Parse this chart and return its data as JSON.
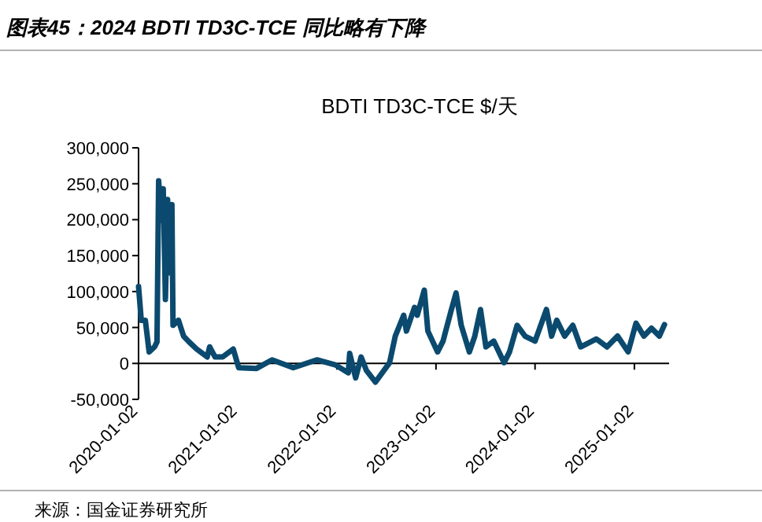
{
  "chart_data": {
    "type": "line",
    "title": "BDTI TD3C-TCE $/天",
    "annotations": [
      "图表45：2024 BDTI TD3C-TCE 同比略有下降",
      "来源：国金证券研究所"
    ],
    "series": [
      {
        "color": "#0b4a6e",
        "x": [
          "2020-01-02",
          "2020-01-12",
          "2020-01-27",
          "2020-02-10",
          "2020-03-01",
          "2020-03-10",
          "2020-03-16",
          "2020-03-26",
          "2020-04-02",
          "2020-04-10",
          "2020-04-18",
          "2020-04-28",
          "2020-05-04",
          "2020-05-08",
          "2020-05-28",
          "2020-06-16",
          "2020-07-06",
          "2020-08-03",
          "2020-09-11",
          "2020-09-20",
          "2020-10-10",
          "2020-11-07",
          "2020-12-16",
          "2021-01-05",
          "2021-03-12",
          "2021-05-08",
          "2021-07-25",
          "2021-10-20",
          "2021-12-27",
          "2022-02-13",
          "2022-02-18",
          "2022-03-12",
          "2022-04-01",
          "2022-04-21",
          "2022-05-24",
          "2022-07-15",
          "2022-08-05",
          "2022-09-05",
          "2022-09-15",
          "2022-10-15",
          "2022-10-25",
          "2022-11-20",
          "2022-12-03",
          "2023-01-08",
          "2023-01-28",
          "2023-02-25",
          "2023-03-17",
          "2023-04-05",
          "2023-05-05",
          "2023-05-25",
          "2023-06-15",
          "2023-07-05",
          "2023-08-03",
          "2023-09-10",
          "2023-09-30",
          "2023-10-28",
          "2023-11-26",
          "2024-01-02",
          "2024-02-13",
          "2024-03-03",
          "2024-03-22",
          "2024-04-20",
          "2024-05-20",
          "2024-06-18",
          "2024-08-15",
          "2024-09-23",
          "2024-11-01",
          "2024-12-10",
          "2025-01-08",
          "2025-02-06",
          "2025-03-06",
          "2025-04-04",
          "2025-04-23"
        ],
        "values": [
          107000,
          60000,
          60000,
          16000,
          23000,
          30000,
          254000,
          199000,
          243000,
          89000,
          228000,
          126000,
          221000,
          53000,
          60000,
          38000,
          30000,
          20000,
          9000,
          23000,
          9000,
          9000,
          20000,
          -6000,
          -7000,
          5000,
          -6000,
          5000,
          -2000,
          -13000,
          14000,
          -20000,
          9000,
          -10000,
          -26000,
          1000,
          38000,
          67000,
          45000,
          78000,
          67000,
          102000,
          45000,
          16000,
          31000,
          71000,
          98000,
          53000,
          16000,
          38000,
          75000,
          23000,
          31000,
          1000,
          16000,
          53000,
          38000,
          31000,
          75000,
          38000,
          60000,
          38000,
          53000,
          23000,
          34000,
          23000,
          38000,
          16000,
          56000,
          38000,
          49000,
          38000,
          54000
        ]
      }
    ],
    "xlim": [
      "2020-01-02",
      "2025-05-10"
    ],
    "xticks": [
      "2020-01-02",
      "2021-01-02",
      "2022-01-02",
      "2023-01-02",
      "2024-01-02",
      "2025-01-02"
    ],
    "ylim": [
      -50000,
      300000
    ],
    "yticks": [
      {
        "value": -50000,
        "label": "-50,000"
      },
      0,
      {
        "value": 50000,
        "label": "50,000"
      },
      {
        "value": 100000,
        "label": "100,000"
      },
      {
        "value": 150000,
        "label": "150,000"
      },
      {
        "value": 200000,
        "label": "200,000"
      },
      {
        "value": 250000,
        "label": "250,000"
      },
      {
        "value": 300000,
        "label": "300,000"
      }
    ],
    "grid": false
  }
}
